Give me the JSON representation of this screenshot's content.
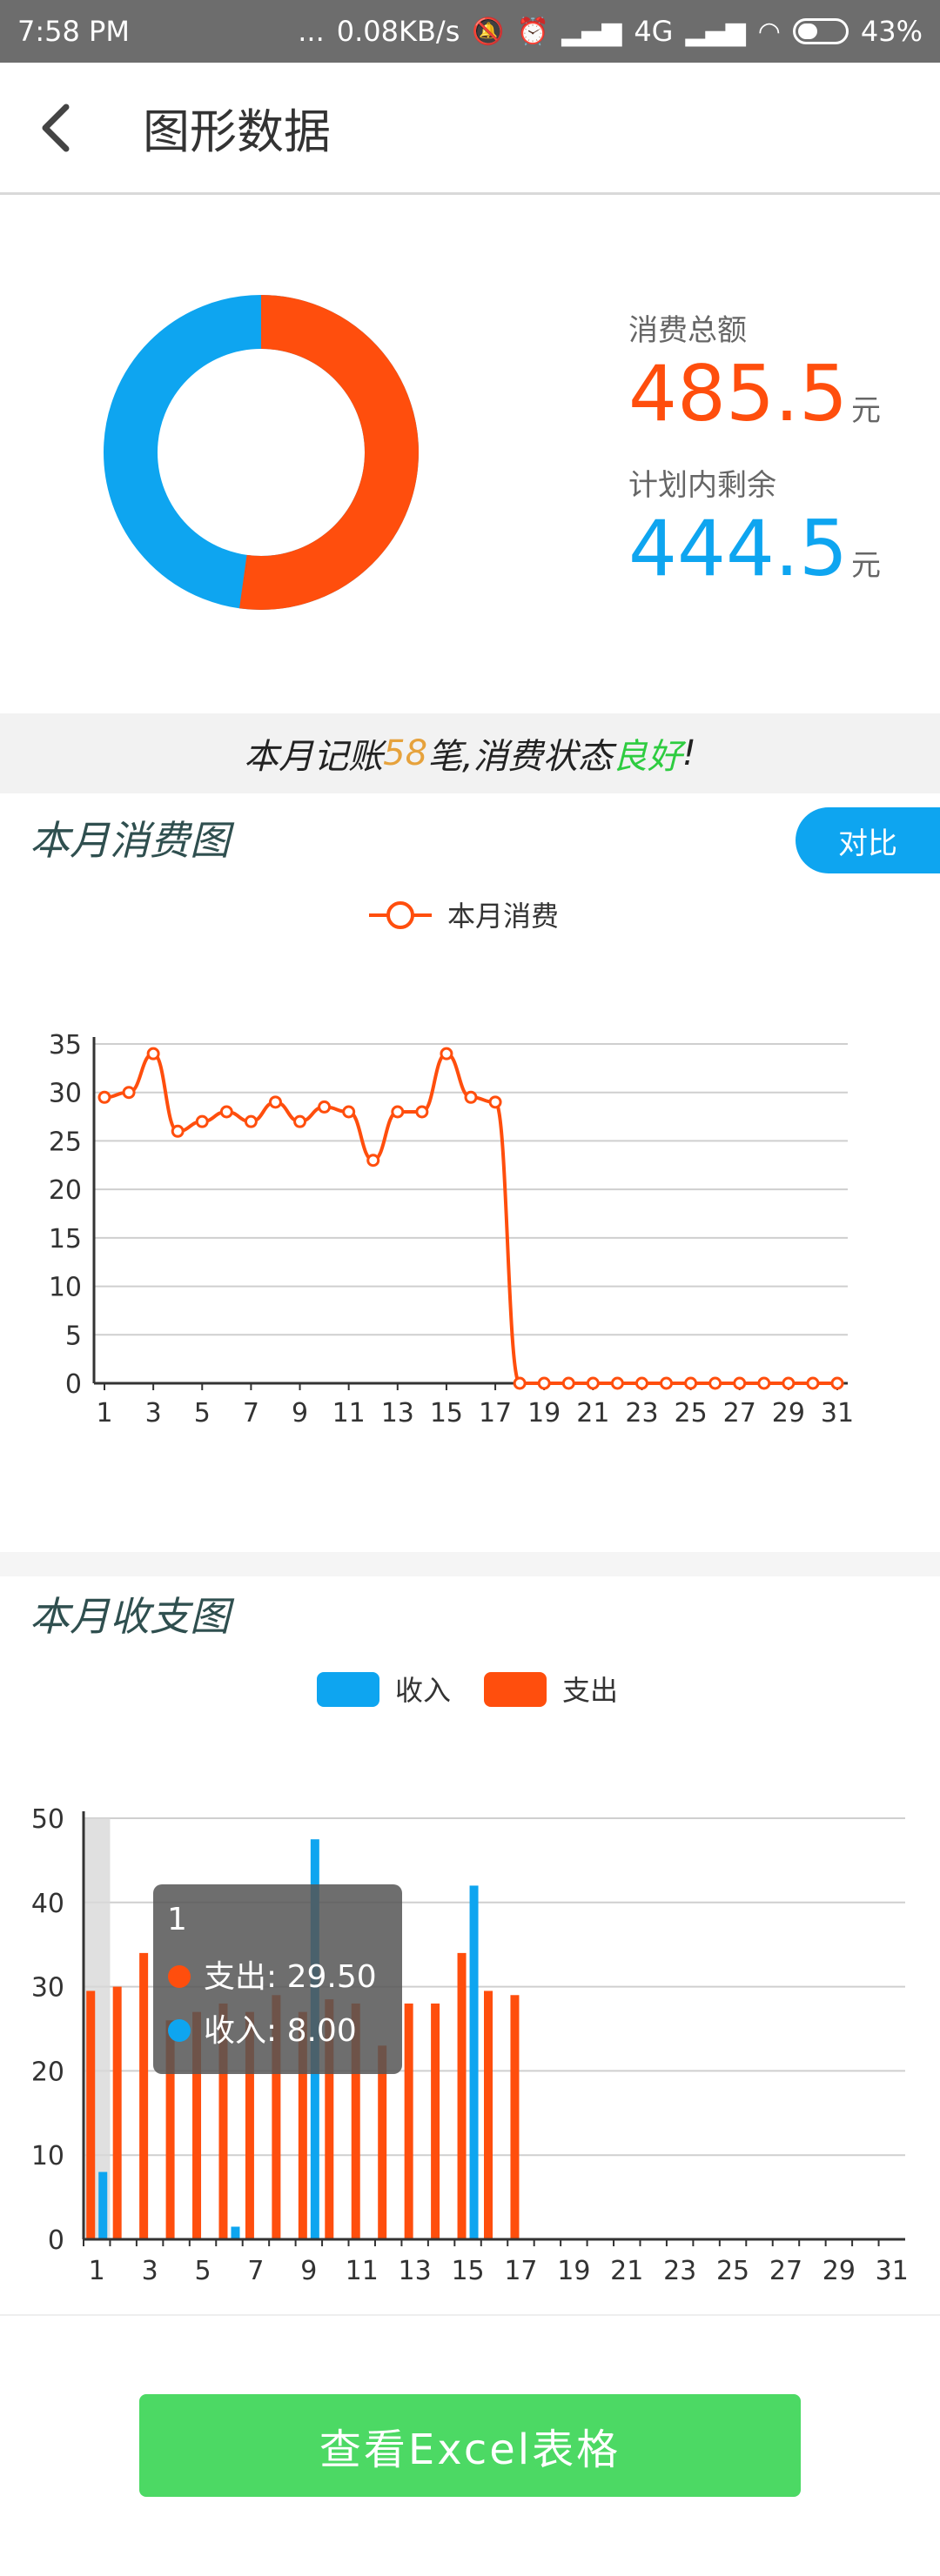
{
  "status_bar": {
    "time": "7:58 PM",
    "dots": "...",
    "net_speed": "0.08KB/s",
    "network": "4G",
    "battery": "43%",
    "battery_level": 0.43
  },
  "app_bar": {
    "title": "图形数据"
  },
  "summary": {
    "total_label": "消费总额",
    "total_value": "485.5",
    "remaining_label": "计划内剩余",
    "remaining_value": "444.5",
    "unit": "元",
    "colors": {
      "spent": "#ff4e0d",
      "remaining": "#0ea5f0"
    }
  },
  "notice": {
    "prefix": "本月记账 ",
    "count": "58",
    "middle": " 笔,消费状态",
    "status": "良好",
    "suffix": "!"
  },
  "consumption_chart": {
    "title": "本月消费图",
    "compare_label": "对比",
    "legend": "本月消费"
  },
  "income_chart": {
    "title": "本月收支图",
    "legend_income": "收入",
    "legend_expense": "支出",
    "tooltip": {
      "title": "1",
      "expense": "支出: 29.50",
      "income": "收入: 8.00"
    }
  },
  "excel_button": "查看Excel表格",
  "chart_data": [
    {
      "type": "line",
      "legend": [
        "本月消费"
      ],
      "x": [
        1,
        2,
        3,
        4,
        5,
        6,
        7,
        8,
        9,
        10,
        11,
        12,
        13,
        14,
        15,
        16,
        17,
        18,
        19,
        20,
        21,
        22,
        23,
        24,
        25,
        26,
        27,
        28,
        29,
        30,
        31
      ],
      "x_tick_labels": [
        "1",
        "3",
        "5",
        "7",
        "9",
        "11",
        "13",
        "15",
        "17",
        "19",
        "21",
        "23",
        "25",
        "27",
        "29",
        "31"
      ],
      "series": [
        {
          "name": "本月消费",
          "values": [
            29.5,
            30,
            34,
            26,
            27,
            28,
            27,
            29,
            27,
            28.5,
            28,
            23,
            28,
            28,
            34,
            29.5,
            29,
            0,
            0,
            0,
            0,
            0,
            0,
            0,
            0,
            0,
            0,
            0,
            0,
            0,
            0
          ]
        }
      ],
      "ylim": [
        0,
        35
      ],
      "y_ticks": [
        0,
        5,
        10,
        15,
        20,
        25,
        30,
        35
      ],
      "color": "#ff4e0d",
      "grid": true
    },
    {
      "type": "bar",
      "legend": [
        "收入",
        "支出"
      ],
      "categories": [
        1,
        2,
        3,
        4,
        5,
        6,
        7,
        8,
        9,
        10,
        11,
        12,
        13,
        14,
        15,
        16,
        17,
        18,
        19,
        20,
        21,
        22,
        23,
        24,
        25,
        26,
        27,
        28,
        29,
        30,
        31
      ],
      "x_tick_labels": [
        "1",
        "3",
        "5",
        "7",
        "9",
        "11",
        "13",
        "15",
        "17",
        "19",
        "21",
        "23",
        "25",
        "27",
        "29",
        "31"
      ],
      "series": [
        {
          "name": "收入",
          "color": "#0ea5f0",
          "values": [
            8,
            0,
            0,
            0,
            0,
            1.5,
            0,
            0,
            47.5,
            0,
            0,
            0,
            0,
            0,
            42,
            0,
            0,
            0,
            0,
            0,
            0,
            0,
            0,
            0,
            0,
            0,
            0,
            0,
            0,
            0,
            0
          ]
        },
        {
          "name": "支出",
          "color": "#ff4e0d",
          "values": [
            29.5,
            30,
            34,
            26,
            27,
            28,
            27,
            29,
            27,
            28.5,
            28,
            23,
            28,
            28,
            34,
            29.5,
            29,
            0,
            0,
            0,
            0,
            0,
            0,
            0,
            0,
            0,
            0,
            0,
            0,
            0,
            0
          ]
        }
      ],
      "ylim": [
        0,
        50
      ],
      "y_ticks": [
        0,
        10,
        20,
        30,
        40,
        50
      ],
      "grid": true,
      "highlight_category": 1
    }
  ]
}
